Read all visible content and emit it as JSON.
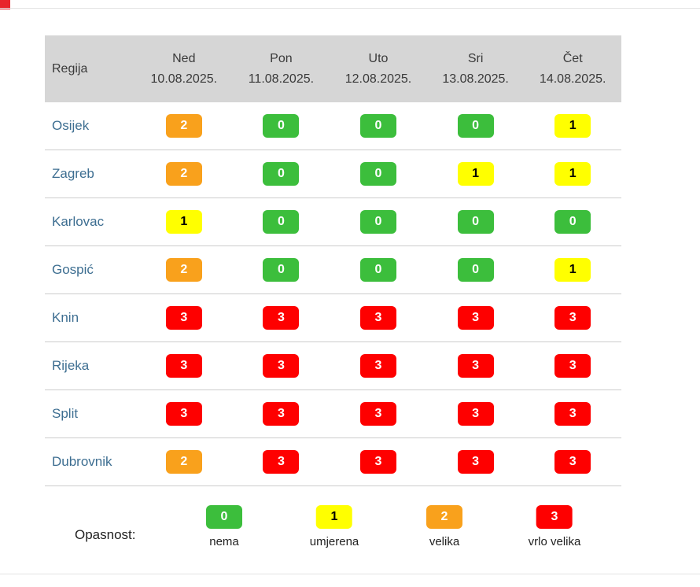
{
  "chart_data": {
    "type": "heatmap",
    "region_column_header": "Regija",
    "columns": [
      {
        "day": "Ned",
        "date": "10.08.2025."
      },
      {
        "day": "Pon",
        "date": "11.08.2025."
      },
      {
        "day": "Uto",
        "date": "12.08.2025."
      },
      {
        "day": "Sri",
        "date": "13.08.2025."
      },
      {
        "day": "Čet",
        "date": "14.08.2025."
      }
    ],
    "rows": [
      {
        "region": "Osijek",
        "values": [
          2,
          0,
          0,
          0,
          1
        ]
      },
      {
        "region": "Zagreb",
        "values": [
          2,
          0,
          0,
          1,
          1
        ]
      },
      {
        "region": "Karlovac",
        "values": [
          1,
          0,
          0,
          0,
          0
        ]
      },
      {
        "region": "Gospić",
        "values": [
          2,
          0,
          0,
          0,
          1
        ]
      },
      {
        "region": "Knin",
        "values": [
          3,
          3,
          3,
          3,
          3
        ]
      },
      {
        "region": "Rijeka",
        "values": [
          3,
          3,
          3,
          3,
          3
        ]
      },
      {
        "region": "Split",
        "values": [
          3,
          3,
          3,
          3,
          3
        ]
      },
      {
        "region": "Dubrovnik",
        "values": [
          2,
          3,
          3,
          3,
          3
        ]
      }
    ],
    "legend": {
      "label": "Opasnost:",
      "items": [
        {
          "value": "0",
          "label": "nema",
          "color": "#3CBE3C"
        },
        {
          "value": "1",
          "label": "umjerena",
          "color": "#FFFF00"
        },
        {
          "value": "2",
          "label": "velika",
          "color": "#F9A11C"
        },
        {
          "value": "3",
          "label": "vrlo velika",
          "color": "#FE0000"
        }
      ]
    }
  },
  "colors": {
    "level_0": "#3CBE3C",
    "level_1": "#FFFF00",
    "level_2": "#F9A11C",
    "level_3": "#FE0000",
    "header_bg": "#D6D6D6",
    "header_text": "#3A3A3A",
    "region_text": "#3D6E91",
    "row_border": "#CCCCCC",
    "rule": "#E3E3E3",
    "corner_red": "#E8252B",
    "legend_text": "#222222"
  }
}
